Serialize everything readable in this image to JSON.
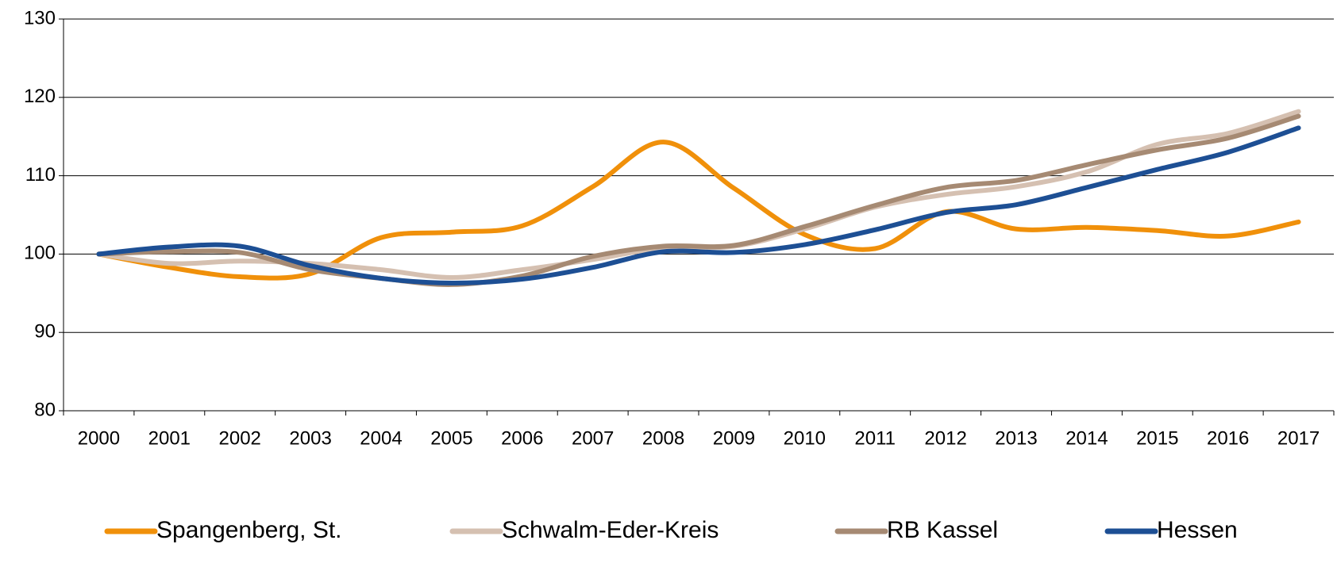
{
  "chart_data": {
    "type": "line",
    "categories": [
      "2000",
      "2001",
      "2002",
      "2003",
      "2004",
      "2005",
      "2006",
      "2007",
      "2008",
      "2009",
      "2010",
      "2011",
      "2012",
      "2013",
      "2014",
      "2015",
      "2016",
      "2017"
    ],
    "series": [
      {
        "name": "Spangenberg, St.",
        "color": "#f0900a",
        "values": [
          100,
          98.3,
          97.1,
          97.5,
          102.1,
          102.8,
          103.6,
          108.6,
          114.3,
          108.4,
          102.5,
          100.7,
          105.4,
          103.2,
          103.4,
          103.0,
          102.3,
          104.1
        ]
      },
      {
        "name": "Schwalm-Eder-Kreis",
        "color": "#d5c0b1",
        "values": [
          100,
          98.8,
          99.1,
          98.8,
          98.0,
          97.0,
          98.0,
          99.3,
          100.8,
          101.0,
          103.2,
          106.0,
          107.6,
          108.6,
          110.5,
          114.0,
          115.4,
          118.2
        ]
      },
      {
        "name": "RB Kassel",
        "color": "#a68a73",
        "values": [
          100,
          100.3,
          100.2,
          98.0,
          96.9,
          96.1,
          97.2,
          99.7,
          101.0,
          101.1,
          103.5,
          106.2,
          108.5,
          109.4,
          111.4,
          113.3,
          114.8,
          117.6
        ]
      },
      {
        "name": "Hessen",
        "color": "#1d4f94",
        "values": [
          100,
          100.9,
          101.0,
          98.5,
          96.9,
          96.3,
          96.8,
          98.3,
          100.3,
          100.2,
          101.2,
          103.1,
          105.3,
          106.3,
          108.5,
          110.8,
          113.0,
          116.1
        ]
      }
    ],
    "ylim": [
      80,
      130
    ],
    "yticks": [
      80,
      90,
      100,
      110,
      120,
      130
    ],
    "grid": true,
    "legend": "bottom"
  }
}
